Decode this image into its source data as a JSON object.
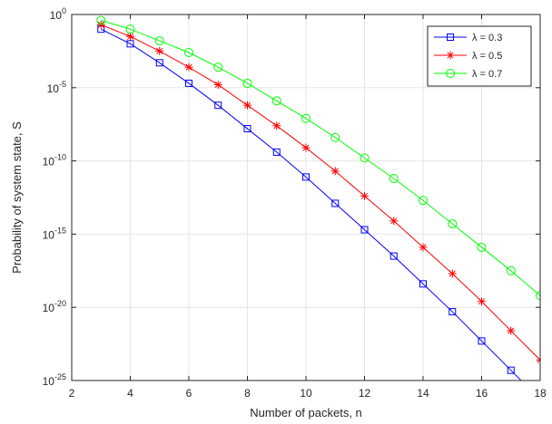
{
  "chart_data": {
    "type": "line",
    "xlabel": "Number of packets, n",
    "ylabel": "Probability of system state, S",
    "xlim": [
      2,
      18
    ],
    "ylim_log10": [
      -25,
      0
    ],
    "yscale": "log",
    "grid": true,
    "legend_position": "top-right",
    "x_ticks": [
      "2",
      "4",
      "6",
      "8",
      "10",
      "12",
      "14",
      "16",
      "18"
    ],
    "y_tick_exponents": [
      "0",
      "-5",
      "-10",
      "-15",
      "-20",
      "-25"
    ],
    "y_tick_base": "10",
    "x": [
      3,
      4,
      5,
      6,
      7,
      8,
      9,
      10,
      11,
      12,
      13,
      14,
      15,
      16,
      17,
      18
    ],
    "series": [
      {
        "name": "λ = 0.3",
        "color": "#0000ff",
        "marker": "square",
        "log10_values": [
          -1.0,
          -2.0,
          -3.3,
          -4.7,
          -6.2,
          -7.8,
          -9.4,
          -11.1,
          -12.9,
          -14.7,
          -16.5,
          -18.4,
          -20.3,
          -22.3,
          -24.3,
          -26.3
        ]
      },
      {
        "name": "λ = 0.5",
        "color": "#ff0000",
        "marker": "asterisk",
        "log10_values": [
          -0.7,
          -1.5,
          -2.5,
          -3.6,
          -4.8,
          -6.2,
          -7.6,
          -9.1,
          -10.7,
          -12.4,
          -14.1,
          -15.9,
          -17.7,
          -19.6,
          -21.6,
          -23.6
        ]
      },
      {
        "name": "λ = 0.7",
        "color": "#00ff00",
        "marker": "circle",
        "log10_values": [
          -0.4,
          -1.0,
          -1.8,
          -2.6,
          -3.6,
          -4.7,
          -5.9,
          -7.1,
          -8.4,
          -9.8,
          -11.2,
          -12.7,
          -14.3,
          -15.9,
          -17.5,
          -19.2
        ]
      }
    ]
  }
}
